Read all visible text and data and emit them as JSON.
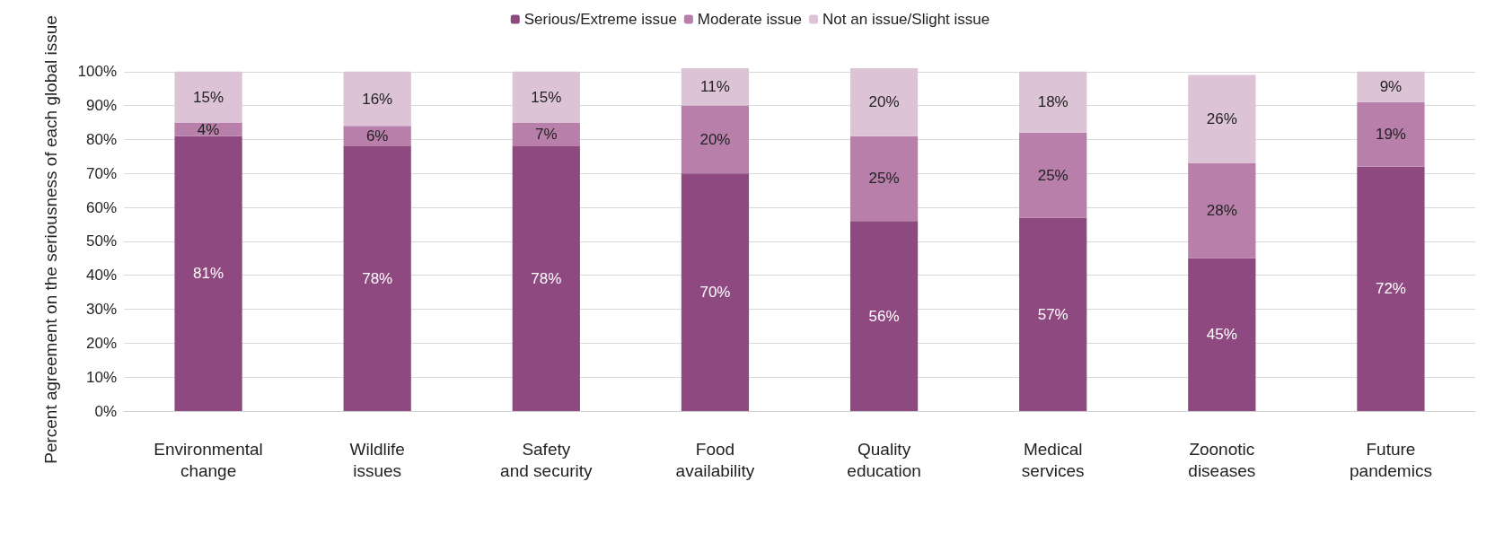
{
  "chart_data": {
    "type": "bar",
    "stacked": true,
    "ylabel": "Percent agreement on the seriousness of each global issue",
    "categories": [
      "Environmental change",
      "Wildlife issues",
      "Safety and security",
      "Food availability",
      "Quality education",
      "Medical services",
      "Zoonotic diseases",
      "Future pandemics"
    ],
    "series": [
      {
        "name": "Serious/Extreme issue",
        "color": "#8e4a80",
        "values": [
          81,
          78,
          78,
          70,
          56,
          57,
          45,
          72
        ],
        "value_labels": [
          "81%",
          "78%",
          "78%",
          "70%",
          "56%",
          "57%",
          "45%",
          "72%"
        ]
      },
      {
        "name": "Moderate issue",
        "color": "#b77faa",
        "values": [
          4,
          6,
          7,
          20,
          25,
          25,
          28,
          19
        ],
        "value_labels": [
          "4%",
          "6%",
          "7%",
          "20%",
          "25%",
          "25%",
          "28%",
          "19%"
        ]
      },
      {
        "name": "Not an issue/Slight issue",
        "color": "#dcc3d6",
        "values": [
          15,
          16,
          15,
          11,
          20,
          18,
          26,
          9
        ],
        "value_labels": [
          "15%",
          "16%",
          "15%",
          "11%",
          "20%",
          "18%",
          "26%",
          "9%"
        ]
      }
    ],
    "ylim": [
      0,
      101
    ],
    "yticks": [
      {
        "value": 0,
        "label": "0%"
      },
      {
        "value": 10,
        "label": "10%"
      },
      {
        "value": 20,
        "label": "20%"
      },
      {
        "value": 30,
        "label": "30%"
      },
      {
        "value": 40,
        "label": "40%"
      },
      {
        "value": 50,
        "label": "50%"
      },
      {
        "value": 60,
        "label": "60%"
      },
      {
        "value": 70,
        "label": "70%"
      },
      {
        "value": 80,
        "label": "80%"
      },
      {
        "value": 90,
        "label": "90%"
      },
      {
        "value": 100,
        "label": "100%"
      }
    ],
    "grid": "y",
    "legend": "top"
  }
}
